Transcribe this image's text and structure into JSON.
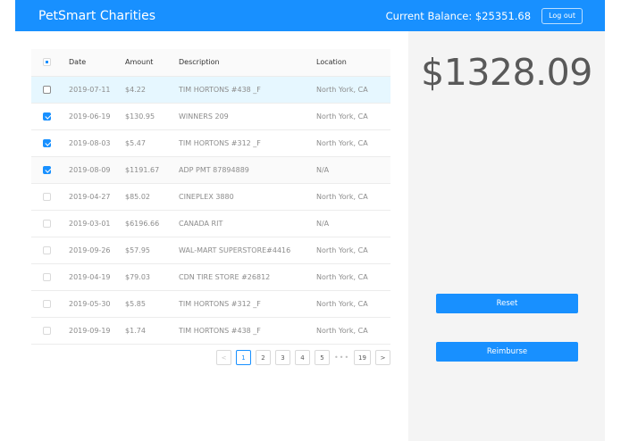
{
  "header": {
    "title": "PetSmart Charities",
    "balance_label": "Current Balance: $25351.68",
    "logout_label": "Log out"
  },
  "table": {
    "columns": [
      "Date",
      "Amount",
      "Description",
      "Location"
    ],
    "select_all_state": "indeterminate",
    "rows": [
      {
        "checked": false,
        "highlighted": true,
        "date": "2019-07-11",
        "amount": "$4.22",
        "description": "TIM HORTONS #438 _F",
        "location": "North York, CA"
      },
      {
        "checked": true,
        "highlighted": false,
        "date": "2019-06-19",
        "amount": "$130.95",
        "description": "WINNERS 209",
        "location": "North York, CA"
      },
      {
        "checked": true,
        "highlighted": false,
        "date": "2019-08-03",
        "amount": "$5.47",
        "description": "TIM HORTONS #312 _F",
        "location": "North York, CA"
      },
      {
        "checked": true,
        "highlighted": false,
        "date": "2019-08-09",
        "amount": "$1191.67",
        "description": "ADP PMT 87894889",
        "location": "N/A"
      },
      {
        "checked": false,
        "highlighted": false,
        "date": "2019-04-27",
        "amount": "$85.02",
        "description": "CINEPLEX 3880",
        "location": "North York, CA"
      },
      {
        "checked": false,
        "highlighted": false,
        "date": "2019-03-01",
        "amount": "$6196.66",
        "description": "CANADA RIT",
        "location": "N/A"
      },
      {
        "checked": false,
        "highlighted": false,
        "date": "2019-09-26",
        "amount": "$57.95",
        "description": "WAL-MART SUPERSTORE#4416",
        "location": "North York, CA"
      },
      {
        "checked": false,
        "highlighted": false,
        "date": "2019-04-19",
        "amount": "$79.03",
        "description": "CDN TIRE STORE #26812",
        "location": "North York, CA"
      },
      {
        "checked": false,
        "highlighted": false,
        "date": "2019-05-30",
        "amount": "$5.85",
        "description": "TIM HORTONS #312 _F",
        "location": "North York, CA"
      },
      {
        "checked": false,
        "highlighted": false,
        "date": "2019-09-19",
        "amount": "$1.74",
        "description": "TIM HORTONS #438 _F",
        "location": "North York, CA"
      }
    ]
  },
  "pagination": {
    "prev": "<",
    "next": ">",
    "pages": [
      "1",
      "2",
      "3",
      "4",
      "5"
    ],
    "ellipsis": "•••",
    "last": "19",
    "current": "1"
  },
  "summary": {
    "selected_total": "$1328.09",
    "reset_label": "Reset",
    "reimburse_label": "Reimburse"
  },
  "colors": {
    "accent": "#1890ff",
    "row_highlight": "#e6f7ff",
    "side_panel": "#f4f4f4"
  }
}
